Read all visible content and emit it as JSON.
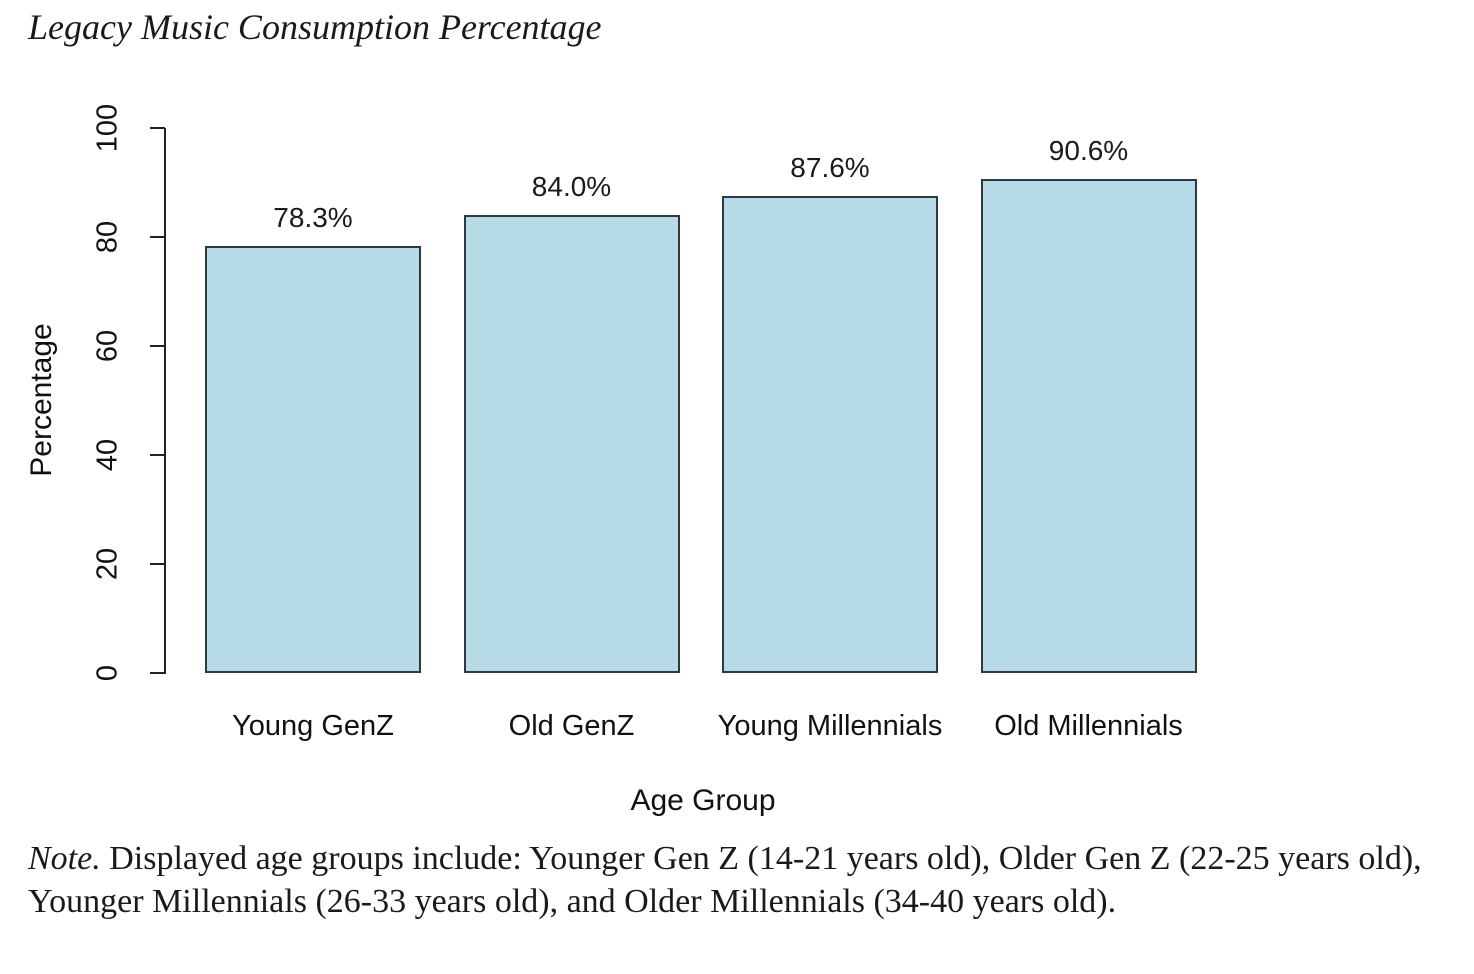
{
  "title": "Legacy Music Consumption Percentage",
  "note": {
    "prefix": "Note.",
    "body": " Displayed age groups include: Younger Gen Z (14-21 years old), Older Gen Z (22-25 years old), Younger Millennials (26-33 years old), and Older Millennials (34-40 years old)."
  },
  "chart_data": {
    "type": "bar",
    "title": "Legacy Music Consumption Percentage",
    "categories": [
      "Young GenZ",
      "Old GenZ",
      "Young Millennials",
      "Old Millennials"
    ],
    "values": [
      78.3,
      84.0,
      87.6,
      90.6
    ],
    "value_labels": [
      "78.3%",
      "84.0%",
      "87.6%",
      "90.6%"
    ],
    "xlabel": "Age Group",
    "ylabel": "Percentage",
    "ylim": [
      0,
      100
    ],
    "yticks": [
      0,
      20,
      40,
      60,
      80,
      100
    ],
    "grid": false,
    "legend": null,
    "bar_fill": "#b6dbe7",
    "bar_border": "#2f3a40",
    "axis_color": "#222222"
  }
}
